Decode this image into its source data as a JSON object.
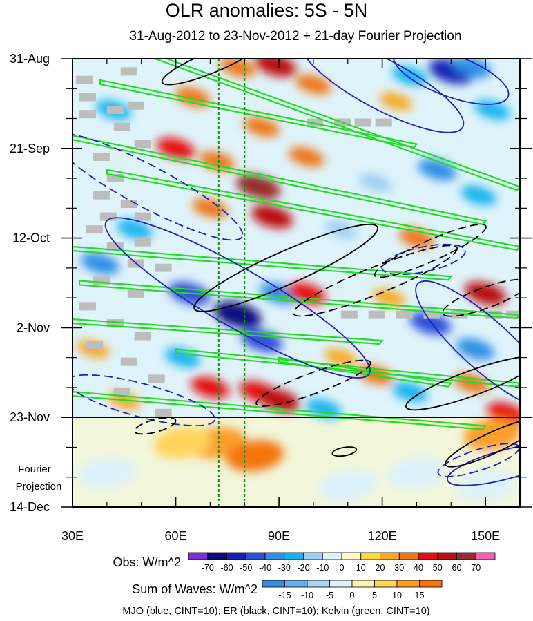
{
  "chart_data": {
    "type": "heatmap",
    "title": "OLR anomalies: 5S - 5N",
    "subtitle": "31-Aug-2012 to 23-Nov-2012 + 21-day Fourier Projection",
    "x_axis": {
      "range": [
        30,
        160
      ],
      "ticks": [
        {
          "value": 30,
          "label": "30E"
        },
        {
          "value": 60,
          "label": "60E"
        },
        {
          "value": 90,
          "label": "90E"
        },
        {
          "value": 120,
          "label": "120E"
        },
        {
          "value": 150,
          "label": "150E"
        }
      ]
    },
    "y_axis": {
      "range_days": [
        0,
        105
      ],
      "direction": "time increases downward",
      "ticks": [
        {
          "day": 0,
          "label": "31-Aug"
        },
        {
          "day": 21,
          "label": "21-Sep"
        },
        {
          "day": 42,
          "label": "12-Oct"
        },
        {
          "day": 63,
          "label": "2-Nov"
        },
        {
          "day": 84,
          "label": "23-Nov"
        },
        {
          "day": 105,
          "label": "14-Dec"
        }
      ]
    },
    "projection_label": [
      "Fourier",
      "Projection"
    ],
    "projection_start_day": 84,
    "reference_lines_lon": [
      72.5,
      80
    ],
    "obs_colorbar": {
      "label": "Obs: W/m^2",
      "ticks": [
        "-70",
        "-60",
        "-50",
        "-40",
        "-30",
        "-20",
        "-10",
        "0",
        "10",
        "20",
        "30",
        "40",
        "50",
        "60",
        "70"
      ],
      "colors": [
        "#7b2fd4",
        "#0a0a7d",
        "#1420b4",
        "#2d4fd8",
        "#2f8ee6",
        "#13b3ef",
        "#9ccff5",
        "#dff3fb",
        "#fff8c6",
        "#ffd937",
        "#f8a823",
        "#ee7615",
        "#e60f0f",
        "#bb0e0e",
        "#992a2a",
        "#f062b3"
      ]
    },
    "waves_colorbar": {
      "label": "Sum of Waves: W/m^2",
      "ticks": [
        "-15",
        "-10",
        "-5",
        "0",
        "5",
        "10",
        "15"
      ],
      "colors": [
        "#3d8ae3",
        "#6aaef0",
        "#a7d4f7",
        "#dcf2fb",
        "#fff3b3",
        "#ffd45c",
        "#fb9e2a",
        "#f5740e"
      ]
    },
    "footer": "MJO (blue, CINT=10); ER (black, CINT=10); Kelvin (green, CINT=10)",
    "wave_contours": {
      "MJO": {
        "color": "#1f1fbf"
      },
      "ER": {
        "color": "#000000"
      },
      "Kelvin": {
        "color": "#22dd22"
      }
    },
    "anomaly_features": [
      {
        "lon": 89,
        "day": 1.5,
        "value": 50
      },
      {
        "lon": 78,
        "day": 2,
        "value": 30
      },
      {
        "lon": 140,
        "day": 3,
        "value": -60
      },
      {
        "lon": 146,
        "day": 2,
        "value": -40
      },
      {
        "lon": 128,
        "day": 4,
        "value": -30
      },
      {
        "lon": 100,
        "day": 6,
        "value": 30
      },
      {
        "lon": 65,
        "day": 9,
        "value": 30
      },
      {
        "lon": 124,
        "day": 10,
        "value": 20
      },
      {
        "lon": 42,
        "day": 12,
        "value": -30
      },
      {
        "lon": 152,
        "day": 12,
        "value": -30
      },
      {
        "lon": 85,
        "day": 16,
        "value": 30
      },
      {
        "lon": 60,
        "day": 21,
        "value": 40
      },
      {
        "lon": 72,
        "day": 24,
        "value": 30
      },
      {
        "lon": 98,
        "day": 23,
        "value": 30
      },
      {
        "lon": 136,
        "day": 26,
        "value": -40
      },
      {
        "lon": 118,
        "day": 29,
        "value": -20
      },
      {
        "lon": 84,
        "day": 30,
        "value": 60
      },
      {
        "lon": 88,
        "day": 37,
        "value": 50
      },
      {
        "lon": 70,
        "day": 35,
        "value": 30
      },
      {
        "lon": 148,
        "day": 32,
        "value": -30
      },
      {
        "lon": 48,
        "day": 40,
        "value": -30
      },
      {
        "lon": 108,
        "day": 40,
        "value": -20
      },
      {
        "lon": 130,
        "day": 42,
        "value": 30
      },
      {
        "lon": 38,
        "day": 48,
        "value": -40
      },
      {
        "lon": 64,
        "day": 55,
        "value": -50
      },
      {
        "lon": 78,
        "day": 60,
        "value": -70
      },
      {
        "lon": 90,
        "day": 55,
        "value": -40
      },
      {
        "lon": 98,
        "day": 55,
        "value": 40
      },
      {
        "lon": 122,
        "day": 56,
        "value": 20
      },
      {
        "lon": 150,
        "day": 55,
        "value": 50
      },
      {
        "lon": 134,
        "day": 62,
        "value": -50
      },
      {
        "lon": 147,
        "day": 68,
        "value": -40
      },
      {
        "lon": 85,
        "day": 66,
        "value": -50
      },
      {
        "lon": 62,
        "day": 70,
        "value": -30
      },
      {
        "lon": 36,
        "day": 68,
        "value": 20
      },
      {
        "lon": 108,
        "day": 70,
        "value": 20
      },
      {
        "lon": 118,
        "day": 74,
        "value": 30
      },
      {
        "lon": 128,
        "day": 78,
        "value": -30
      },
      {
        "lon": 70,
        "day": 77,
        "value": 40
      },
      {
        "lon": 84,
        "day": 78,
        "value": 40
      },
      {
        "lon": 90,
        "day": 80,
        "value": 50
      },
      {
        "lon": 45,
        "day": 80,
        "value": 20
      },
      {
        "lon": 146,
        "day": 76,
        "value": 30
      },
      {
        "lon": 103,
        "day": 82,
        "value": -30
      },
      {
        "lon": 156,
        "day": 83,
        "value": 40
      },
      {
        "lon": 72,
        "day": 90,
        "value": 10
      },
      {
        "lon": 83,
        "day": 93,
        "value": 15
      },
      {
        "lon": 62,
        "day": 90,
        "value": 5
      },
      {
        "lon": 130,
        "day": 97,
        "value": -5
      },
      {
        "lon": 150,
        "day": 100,
        "value": -5
      },
      {
        "lon": 40,
        "day": 97,
        "value": -5
      },
      {
        "lon": 110,
        "day": 100,
        "value": -5
      },
      {
        "lon": 152,
        "day": 88,
        "value": 10
      }
    ]
  }
}
